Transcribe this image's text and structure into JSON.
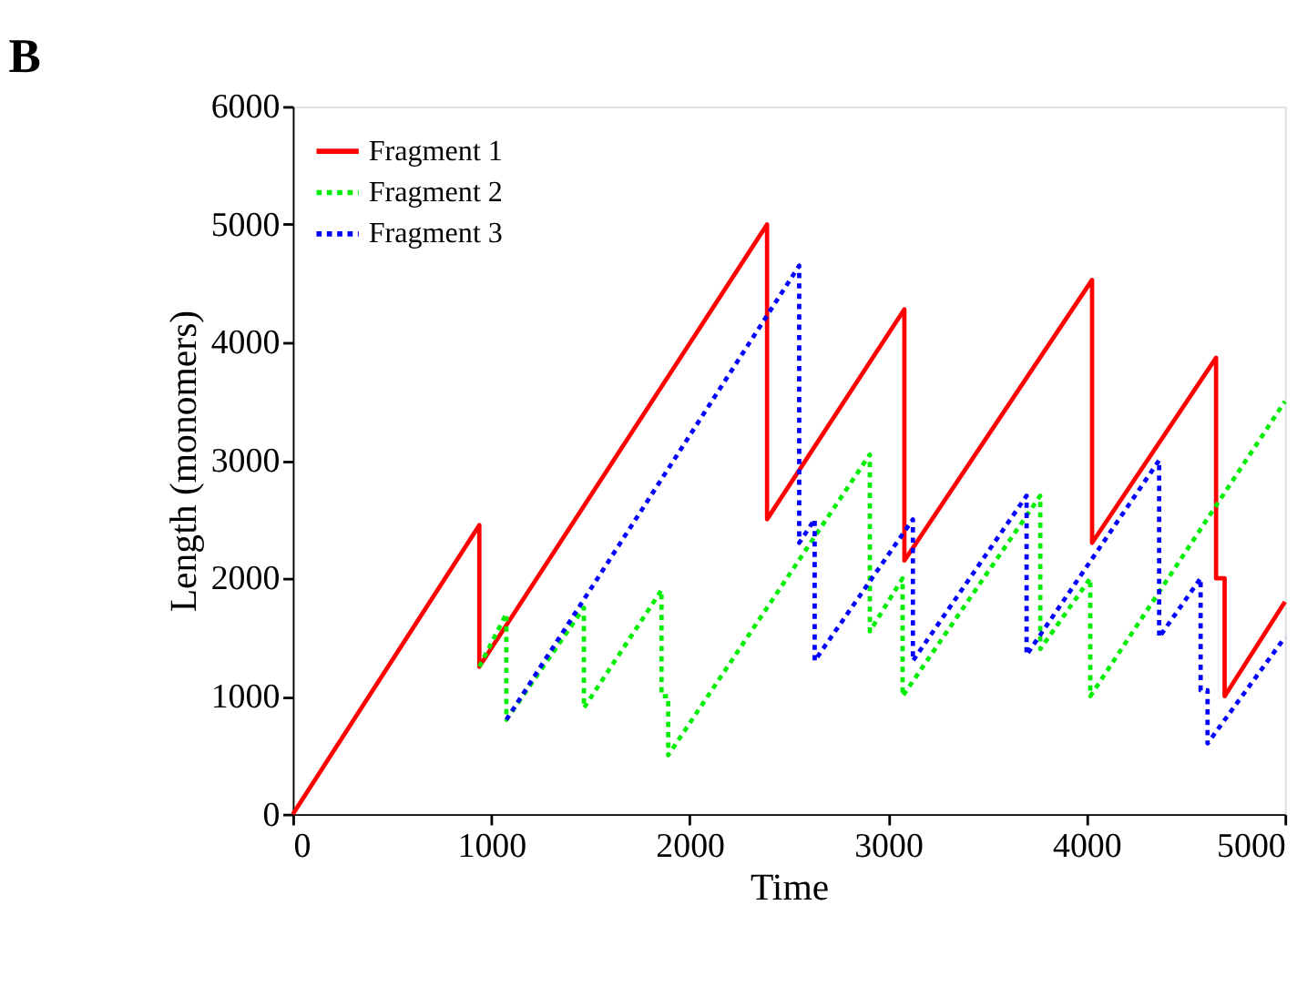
{
  "chart_data": {
    "type": "line",
    "title": "B",
    "xlabel": "Time",
    "ylabel": "Length (monomers)",
    "xlim": [
      0,
      5000
    ],
    "ylim": [
      0,
      6000
    ],
    "xticks": [
      0,
      1000,
      2000,
      3000,
      4000,
      5000
    ],
    "yticks": [
      0,
      1000,
      2000,
      3000,
      4000,
      5000,
      6000
    ],
    "grid": false,
    "legend": "top left",
    "marker": "none",
    "series": [
      {
        "name": "Fragment 1",
        "color": "#ff0000",
        "line_style": "solid",
        "x": [
          0,
          940,
          940,
          2390,
          2390,
          3082,
          3082,
          4028,
          4028,
          4653,
          4653,
          4696,
          4696,
          5000
        ],
        "values": [
          0,
          2450,
          1250,
          5000,
          2500,
          4280,
          2150,
          4530,
          2300,
          3870,
          2000,
          2000,
          1000,
          1800
        ]
      },
      {
        "name": "Fragment 2",
        "color": "#00ee00",
        "line_style": "dotted",
        "x": [
          940,
          1076,
          1076,
          1467,
          1467,
          1858,
          1858,
          1892,
          1892,
          2908,
          2908,
          3073,
          3073,
          3767,
          3767,
          4019,
          4019,
          5000
        ],
        "values": [
          1250,
          1700,
          800,
          1750,
          900,
          1900,
          1000,
          1000,
          500,
          3050,
          1550,
          2000,
          1000,
          2700,
          1400,
          2000,
          1000,
          3500
        ]
      },
      {
        "name": "Fragment 3",
        "color": "#0000ff",
        "line_style": "dotted",
        "x": [
          1076,
          2552,
          2552,
          2630,
          2630,
          3125,
          3125,
          3698,
          3698,
          4366,
          4366,
          4575,
          4575,
          4610,
          4610,
          5000
        ],
        "values": [
          800,
          4650,
          2300,
          2500,
          1300,
          2500,
          1300,
          2700,
          1350,
          3000,
          1500,
          2000,
          1050,
          1050,
          600,
          1500
        ]
      }
    ]
  }
}
